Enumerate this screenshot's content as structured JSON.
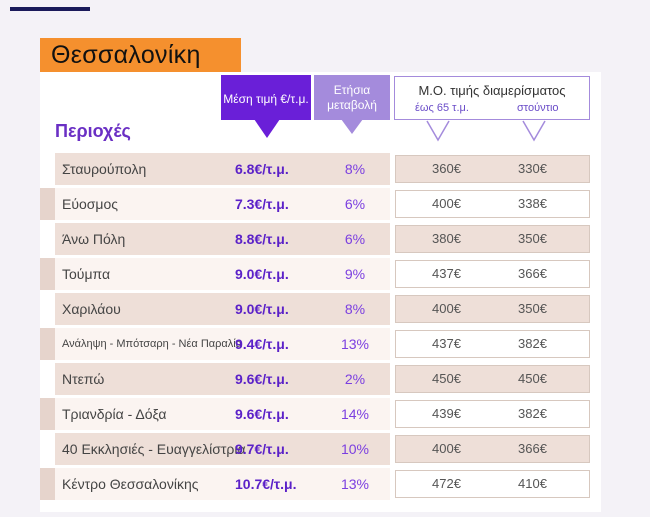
{
  "title": "Θεσσαλονίκη",
  "header": {
    "regions": "Περιοχές",
    "avg_price": "Μέση τιμή €/τ.μ.",
    "annual_change": "Ετήσια μεταβολή",
    "apt_title": "Μ.Ο. τιμής διαμερίσματος",
    "apt_sub1": "έως 65 τ.μ.",
    "apt_sub2": "στούντιο"
  },
  "colors": {
    "accent_purple": "#6a1fd8",
    "light_purple": "#a48bdc",
    "orange": "#f5902e"
  },
  "rows": [
    {
      "name": "Σταυρούπολη",
      "price": "6.8€/τ.μ.",
      "change": "8%",
      "apt65": "360€",
      "studio": "330€"
    },
    {
      "name": "Εύοσμος",
      "price": "7.3€/τ.μ.",
      "change": "6%",
      "apt65": "400€",
      "studio": "338€"
    },
    {
      "name": "Άνω Πόλη",
      "price": "8.8€/τ.μ.",
      "change": "6%",
      "apt65": "380€",
      "studio": "350€"
    },
    {
      "name": "Τούμπα",
      "price": "9.0€/τ.μ.",
      "change": "9%",
      "apt65": "437€",
      "studio": "366€"
    },
    {
      "name": "Χαριλάου",
      "price": "9.0€/τ.μ.",
      "change": "8%",
      "apt65": "400€",
      "studio": "350€"
    },
    {
      "name": "Ανάληψη - Μπότσαρη - Νέα Παραλία",
      "price": "9.4€/τ.μ.",
      "change": "13%",
      "apt65": "437€",
      "studio": "382€"
    },
    {
      "name": "Ντεπώ",
      "price": "9.6€/τ.μ.",
      "change": "2%",
      "apt65": "450€",
      "studio": "450€"
    },
    {
      "name": "Τριανδρία - Δόξα",
      "price": "9.6€/τ.μ.",
      "change": "14%",
      "apt65": "439€",
      "studio": "382€"
    },
    {
      "name": "40 Εκκλησιές - Ευαγγελίστρια",
      "price": "9.7€/τ.μ.",
      "change": "10%",
      "apt65": "400€",
      "studio": "366€"
    },
    {
      "name": "Κέντρο Θεσσαλονίκης",
      "price": "10.7€/τ.μ.",
      "change": "13%",
      "apt65": "472€",
      "studio": "410€"
    }
  ]
}
